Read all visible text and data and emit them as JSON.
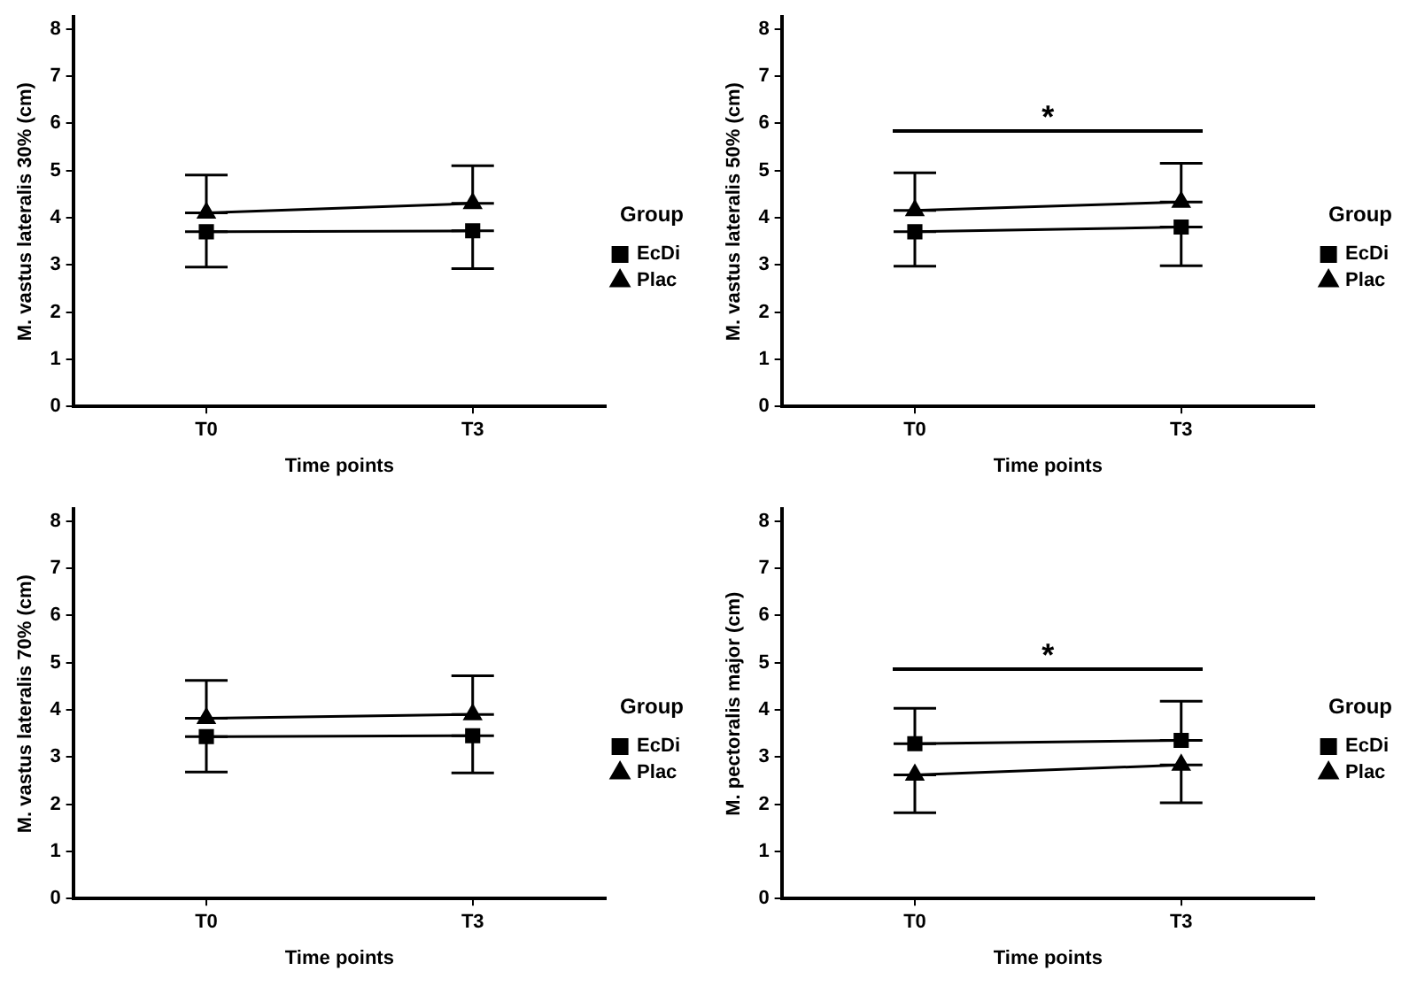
{
  "chart_data": [
    {
      "type": "line",
      "categories": [
        "T0",
        "T3"
      ],
      "xlabel": "Time points",
      "ylabel": "M. vastus lateralis 30% (cm)",
      "legend_title": "Group",
      "legend": "right",
      "ylim": [
        0,
        8.25
      ],
      "yticks": [
        0,
        1,
        2,
        3,
        4,
        5,
        6,
        7,
        8
      ],
      "series": [
        {
          "name": "EcDi",
          "color": "#000000",
          "marker": "square",
          "values": [
            3.7,
            3.72
          ],
          "errors": [
            [
              2.95,
              3.7
            ],
            [
              2.92,
              3.72
            ]
          ]
        },
        {
          "name": "Plac",
          "color": "#000000",
          "marker": "triangle",
          "values": [
            4.1,
            4.3
          ],
          "errors": [
            [
              4.1,
              4.9
            ],
            [
              4.3,
              5.1
            ]
          ]
        }
      ]
    },
    {
      "type": "line",
      "categories": [
        "T0",
        "T3"
      ],
      "xlabel": "Time points",
      "ylabel": "M. vastus lateralis 50% (cm)",
      "legend_title": "Group",
      "legend": "right",
      "ylim": [
        0,
        8.25
      ],
      "yticks": [
        0,
        1,
        2,
        3,
        4,
        5,
        6,
        7,
        8
      ],
      "annotations": [
        "*"
      ],
      "series": [
        {
          "name": "EcDi",
          "color": "#000000",
          "marker": "square",
          "values": [
            3.7,
            3.8
          ],
          "errors": [
            [
              2.97,
              3.7
            ],
            [
              2.98,
              3.8
            ]
          ]
        },
        {
          "name": "Plac",
          "color": "#000000",
          "marker": "triangle",
          "values": [
            4.15,
            4.33
          ],
          "errors": [
            [
              4.15,
              4.95
            ],
            [
              4.33,
              5.15
            ]
          ]
        }
      ]
    },
    {
      "type": "line",
      "categories": [
        "T0",
        "T3"
      ],
      "xlabel": "Time points",
      "ylabel": "M. vastus lateralis 70% (cm)",
      "legend_title": "Group",
      "legend": "right",
      "ylim": [
        0,
        8.25
      ],
      "yticks": [
        0,
        1,
        2,
        3,
        4,
        5,
        6,
        7,
        8
      ],
      "series": [
        {
          "name": "EcDi",
          "color": "#000000",
          "marker": "square",
          "values": [
            3.43,
            3.45
          ],
          "errors": [
            [
              2.68,
              3.43
            ],
            [
              2.66,
              3.45
            ]
          ]
        },
        {
          "name": "Plac",
          "color": "#000000",
          "marker": "triangle",
          "values": [
            3.82,
            3.9
          ],
          "errors": [
            [
              3.82,
              4.62
            ],
            [
              3.9,
              4.72
            ]
          ]
        }
      ]
    },
    {
      "type": "line",
      "categories": [
        "T0",
        "T3"
      ],
      "xlabel": "Time points",
      "ylabel": "M. pectoralis major (cm)",
      "legend_title": "Group",
      "legend": "right",
      "ylim": [
        0,
        8.25
      ],
      "yticks": [
        0,
        1,
        2,
        3,
        4,
        5,
        6,
        7,
        8
      ],
      "annotations": [
        "*"
      ],
      "series": [
        {
          "name": "EcDi",
          "color": "#000000",
          "marker": "square",
          "values": [
            3.28,
            3.35
          ],
          "errors": [
            [
              3.28,
              4.03
            ],
            [
              3.35,
              4.18
            ]
          ]
        },
        {
          "name": "Plac",
          "color": "#000000",
          "marker": "triangle",
          "values": [
            2.62,
            2.83
          ],
          "errors": [
            [
              1.82,
              2.62
            ],
            [
              2.03,
              2.83
            ]
          ]
        }
      ]
    }
  ]
}
